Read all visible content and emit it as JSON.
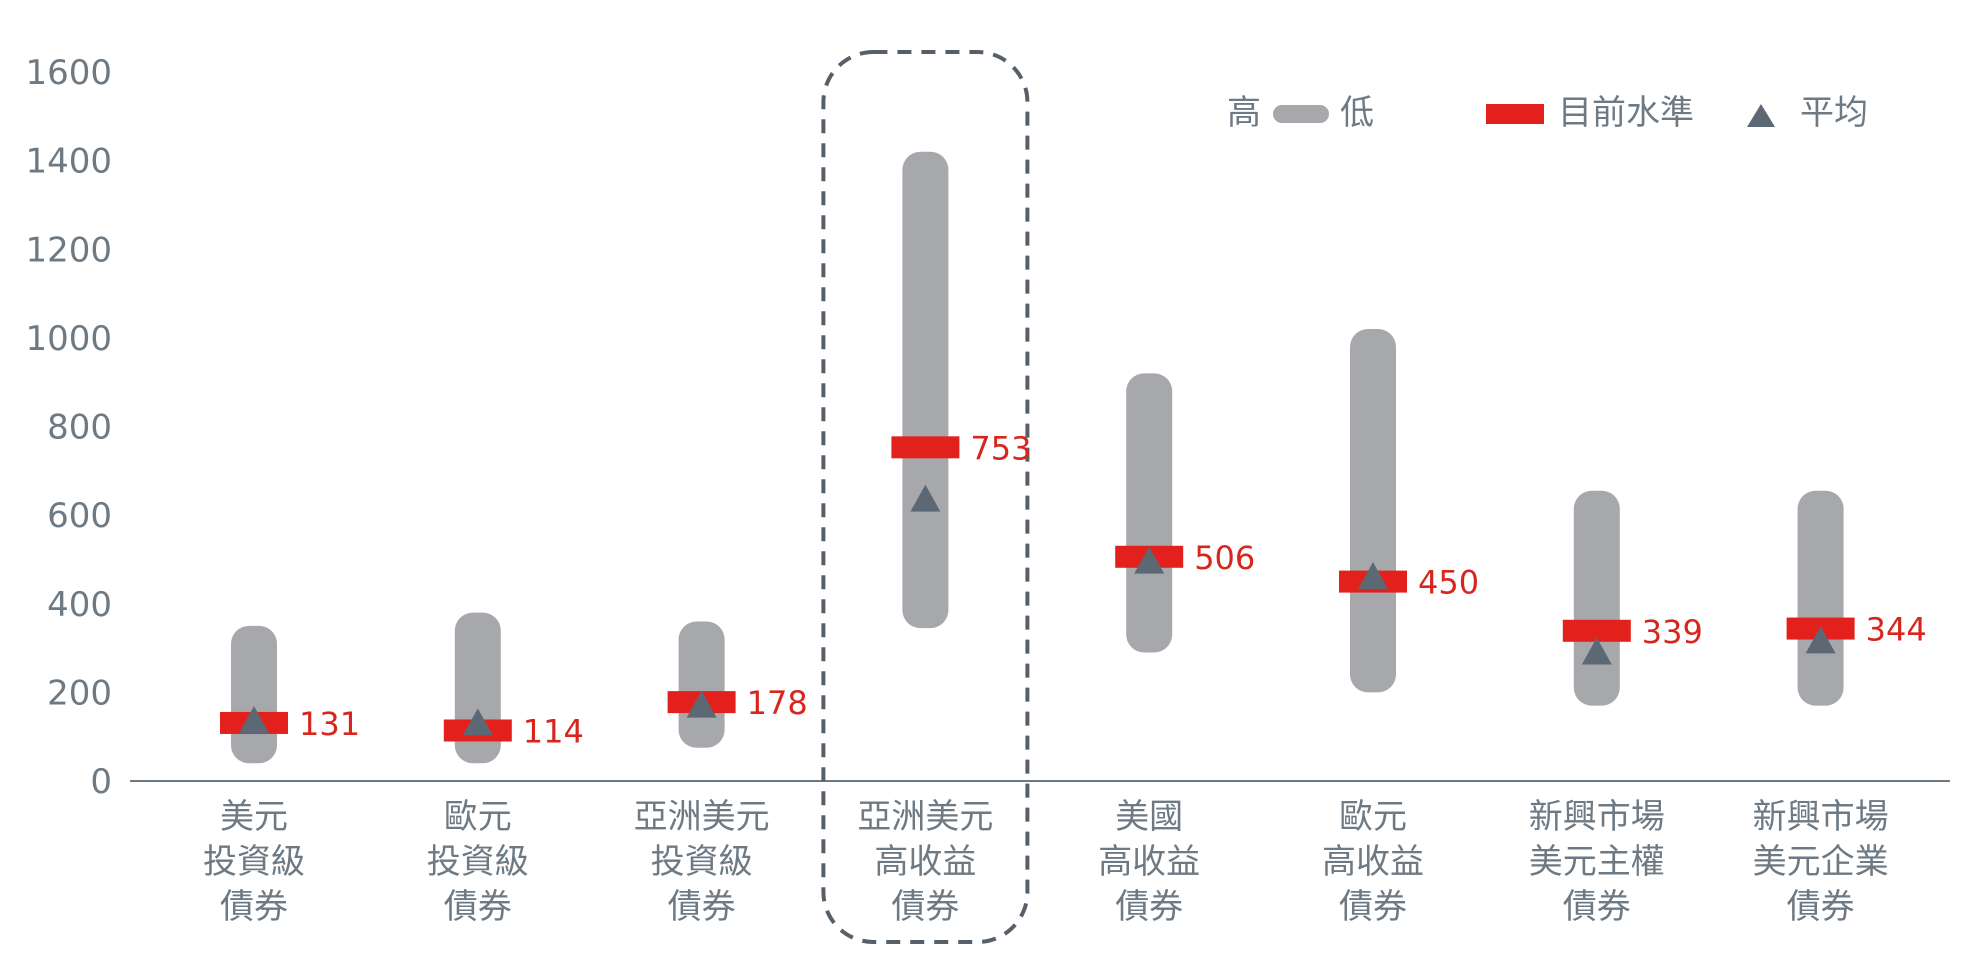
{
  "chart_data": {
    "type": "range",
    "ylim": [
      0,
      1600
    ],
    "yticks": [
      "0",
      "200",
      "400",
      "600",
      "800",
      "1000",
      "1200",
      "1400",
      "1600"
    ],
    "categories": [
      [
        "美元",
        "投資級",
        "債券"
      ],
      [
        "歐元",
        "投資級",
        "債券"
      ],
      [
        "亞洲美元",
        "投資級",
        "債券"
      ],
      [
        "亞洲美元",
        "高收益",
        "債券"
      ],
      [
        "美國",
        "高收益",
        "債券"
      ],
      [
        "歐元",
        "高收益",
        "債券"
      ],
      [
        "新興市場",
        "美元主權",
        "債券"
      ],
      [
        "新興市場",
        "美元企業",
        "債券"
      ]
    ],
    "series": [
      {
        "key": "high",
        "values": [
          350,
          380,
          360,
          1420,
          920,
          1020,
          655,
          655
        ]
      },
      {
        "key": "low",
        "values": [
          40,
          40,
          75,
          345,
          290,
          200,
          170,
          170
        ]
      },
      {
        "key": "current",
        "values": [
          131,
          114,
          178,
          753,
          506,
          450,
          339,
          344
        ]
      },
      {
        "key": "average",
        "values": [
          135,
          130,
          170,
          635,
          495,
          460,
          290,
          315
        ]
      }
    ],
    "current_labels": [
      "131",
      "114",
      "178",
      "753",
      "506",
      "450",
      "339",
      "344"
    ],
    "highlighted_index": 3,
    "legend": {
      "range_high": "高",
      "range_low": "低",
      "current": "目前水準",
      "average": "平均"
    },
    "colors": {
      "range": "#a7a8ab",
      "current": "#e2211c",
      "average": "#5c6873",
      "axis": "#6d7a84",
      "highlight_border": "#56606a",
      "label": "#d7261e"
    }
  }
}
